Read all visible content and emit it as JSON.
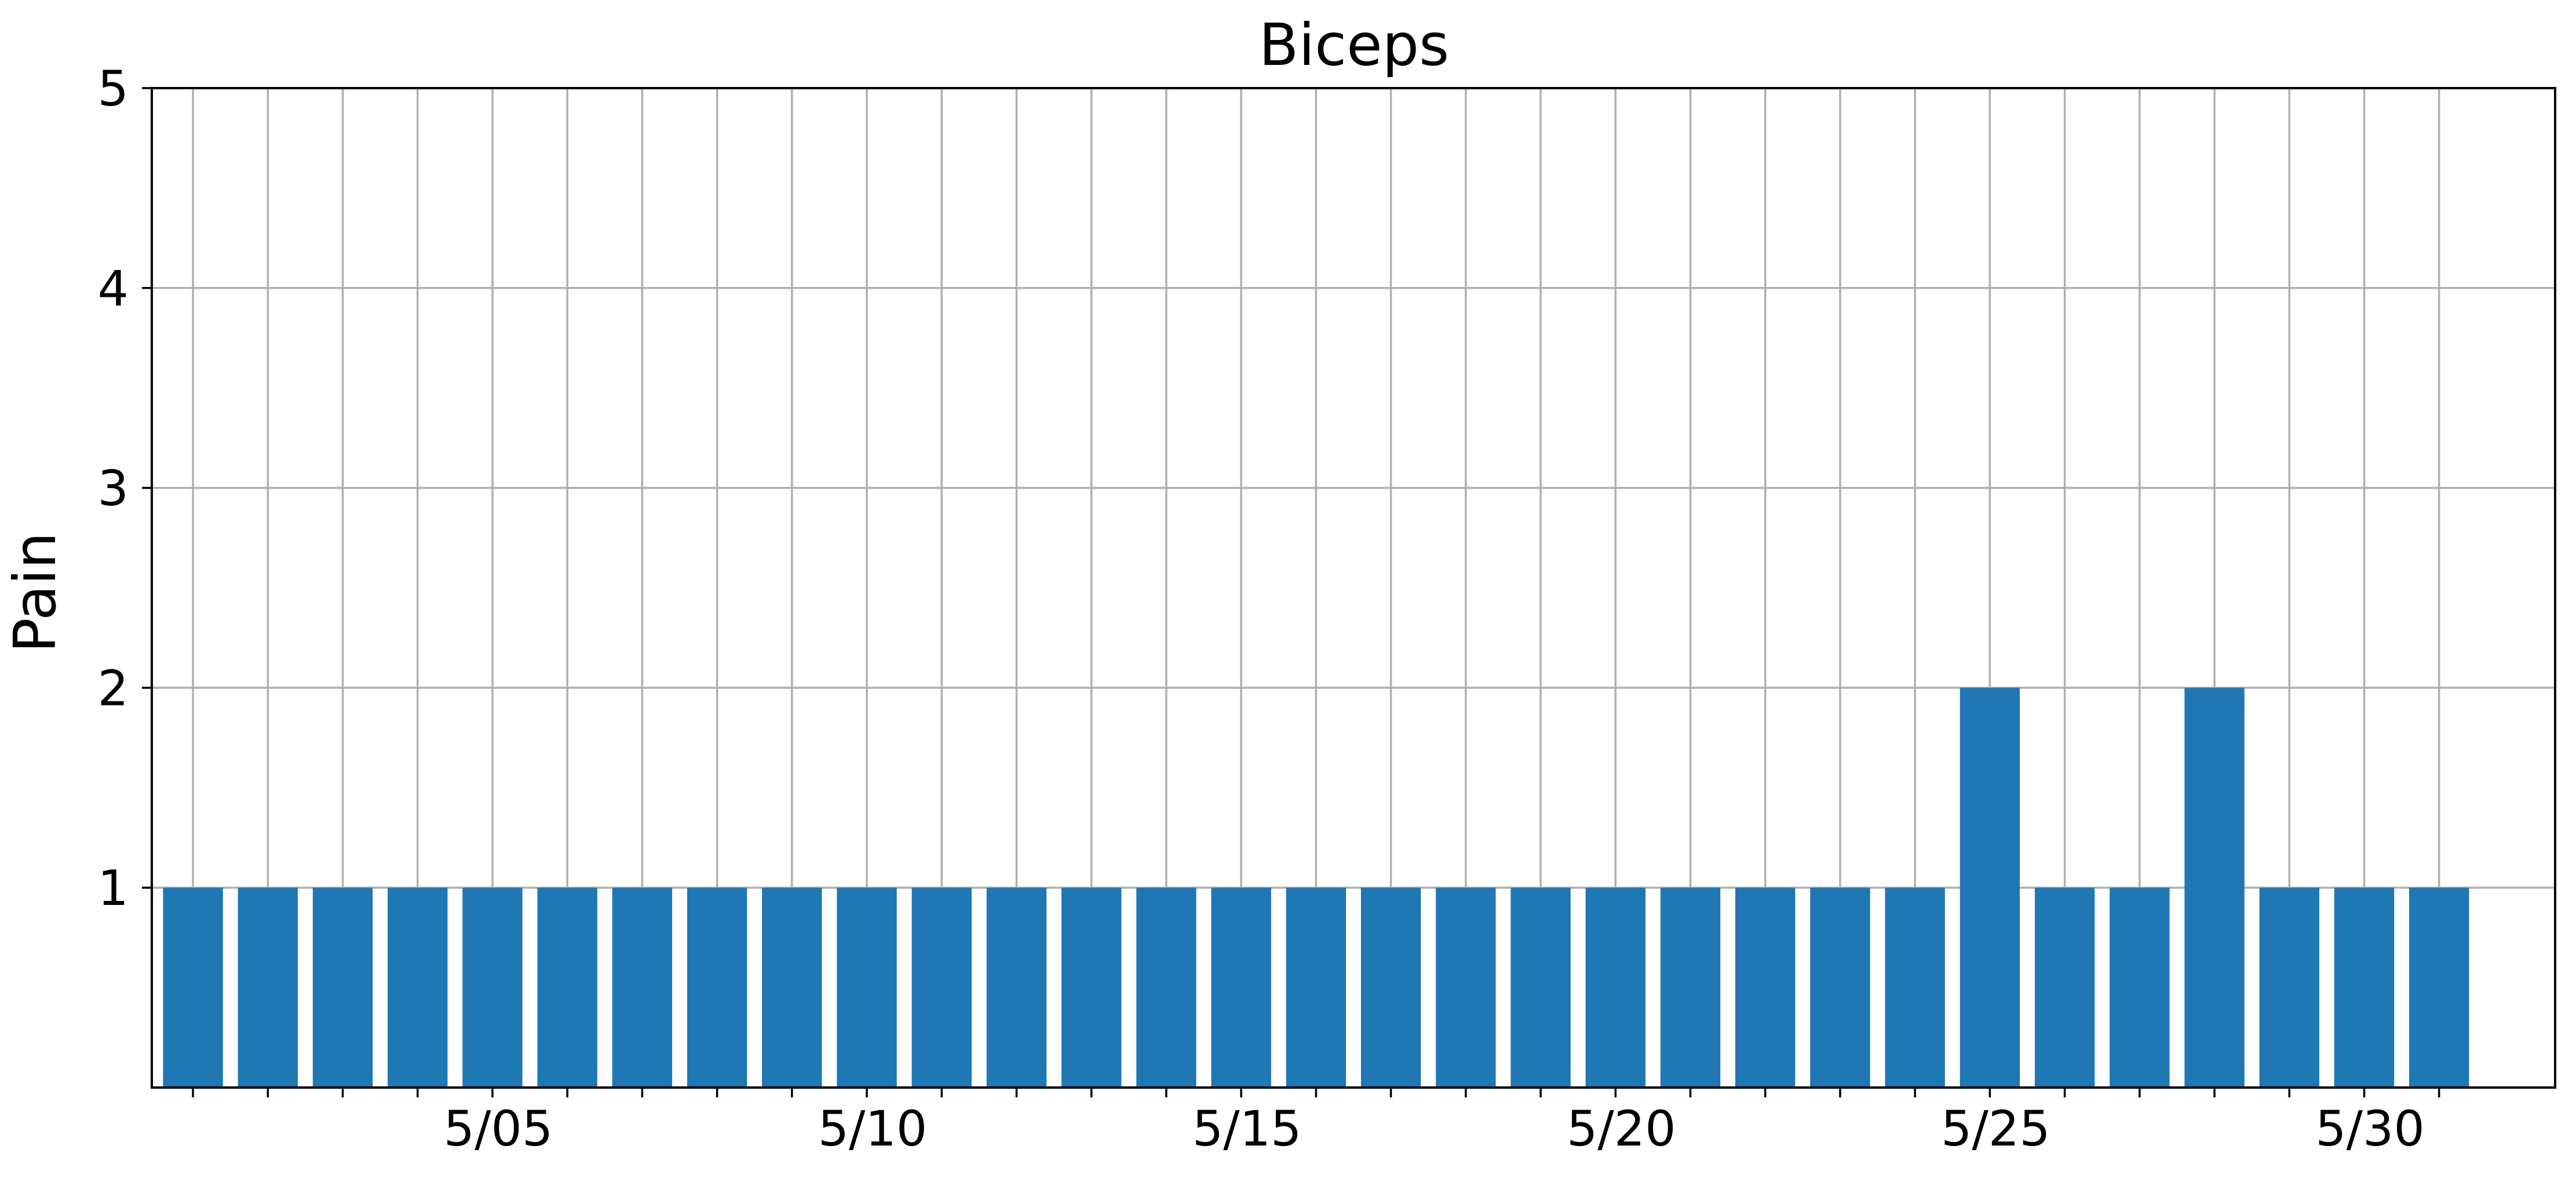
{
  "chart_data": {
    "type": "bar",
    "title": "Biceps",
    "ylabel": "Pain",
    "xlabel": "",
    "ylim": [
      0,
      5
    ],
    "yticks": [
      1,
      2,
      3,
      4,
      5
    ],
    "categories": [
      "5/01",
      "5/02",
      "5/03",
      "5/04",
      "5/05",
      "5/06",
      "5/07",
      "5/08",
      "5/09",
      "5/10",
      "5/11",
      "5/12",
      "5/13",
      "5/14",
      "5/15",
      "5/16",
      "5/17",
      "5/18",
      "5/19",
      "5/20",
      "5/21",
      "5/22",
      "5/23",
      "5/24",
      "5/25",
      "5/26",
      "5/27",
      "5/28",
      "5/29",
      "5/30",
      "5/31"
    ],
    "labeled_ticks": [
      "5/05",
      "5/10",
      "5/15",
      "5/20",
      "5/25",
      "5/30"
    ],
    "values": [
      1,
      1,
      1,
      1,
      1,
      1,
      1,
      1,
      1,
      1,
      1,
      1,
      1,
      1,
      1,
      1,
      1,
      1,
      1,
      1,
      1,
      1,
      1,
      1,
      2,
      1,
      1,
      2,
      1,
      1,
      1
    ],
    "grid": true,
    "bar_color": "#1f77b4"
  }
}
